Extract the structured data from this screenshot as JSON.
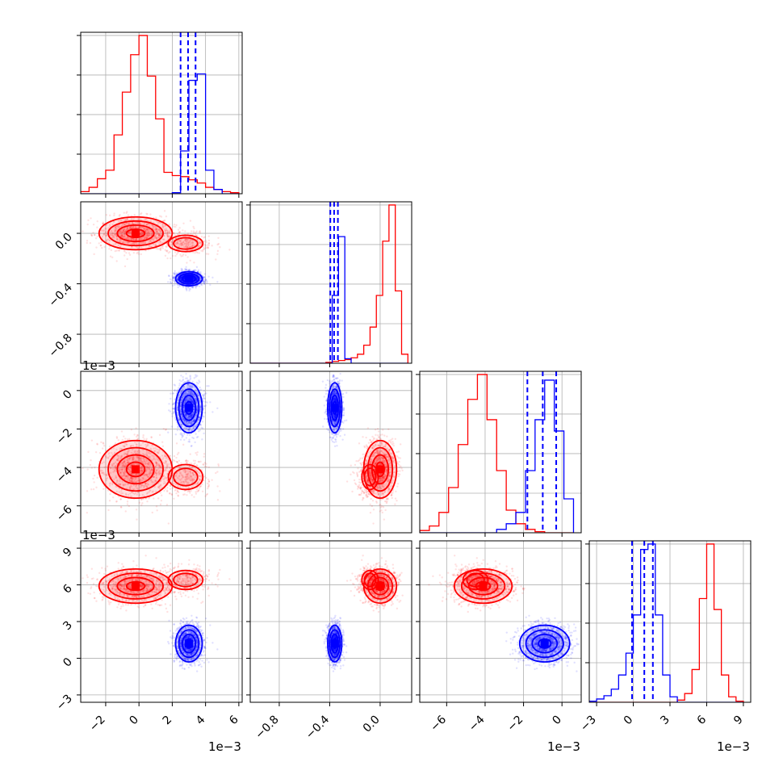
{
  "chart_data": {
    "type": "corner",
    "grid": true,
    "colors": {
      "red": "#ff0000",
      "blue": "#0000ff"
    },
    "series": [
      {
        "color": "#ff0000",
        "index": 0
      },
      {
        "color": "#0000ff",
        "index": 1
      }
    ],
    "parameters": [
      {
        "id": "p0",
        "range": [
          -0.0035,
          0.0062
        ],
        "ticks": [
          -0.002,
          0,
          0.002,
          0.004,
          0.006
        ],
        "tick_labels": [
          "−2",
          "0",
          "2",
          "4",
          "6"
        ],
        "offset_text": "1e−3"
      },
      {
        "id": "p1",
        "range": [
          -1.03,
          0.25
        ],
        "ticks": [
          -0.8,
          -0.4,
          0.0
        ],
        "tick_labels": [
          "−0.8",
          "−0.4",
          "0.0"
        ],
        "offset_text": ""
      },
      {
        "id": "p2",
        "range": [
          -0.0074,
          0.001
        ],
        "ticks": [
          -0.006,
          -0.004,
          -0.002,
          0
        ],
        "tick_labels": [
          "−6",
          "−4",
          "−2",
          "0"
        ],
        "offset_text": "1e−3"
      },
      {
        "id": "p3",
        "range": [
          -0.0036,
          0.0096
        ],
        "ticks": [
          -0.003,
          0,
          0.003,
          0.006,
          0.009
        ],
        "tick_labels": [
          "−3",
          "0",
          "3",
          "6",
          "9"
        ],
        "offset_text": "1e−3"
      }
    ],
    "quantile_lines": [
      [
        0.0025,
        0.00295,
        0.0034
      ],
      [
        -0.395,
        -0.365,
        -0.335
      ],
      [
        -0.0018,
        -0.001,
        -0.0003
      ],
      [
        -0.0001,
        0.0009,
        0.0016
      ]
    ],
    "blobs": [
      [
        {
          "mean": [
            -0.0002,
            0.0001,
            -0.0041,
            0.0059
          ],
          "sd": [
            0.0011,
            0.065,
            0.00075,
            0.0007
          ],
          "weight": 1.0
        },
        {
          "mean": [
            0.0028,
            -0.08,
            -0.0045,
            0.0064
          ],
          "sd": [
            0.0008,
            0.05,
            0.0005,
            0.0006
          ],
          "weight": 0.3
        }
      ],
      [
        {
          "mean": [
            0.003,
            -0.36,
            -0.0009,
            0.0012
          ],
          "sd": [
            0.0004,
            0.028,
            0.00065,
            0.00075
          ],
          "weight": 1.0
        }
      ]
    ],
    "samples_per_series": 1400,
    "marginal_histograms": [
      {
        "parameter": "p0",
        "bin_edges": [
          -0.0035,
          -0.003,
          -0.0025,
          -0.002,
          -0.0015,
          -0.001,
          -0.0005,
          0,
          0.0005,
          0.001,
          0.0015,
          0.002,
          0.0025,
          0.003,
          0.0035,
          0.004,
          0.0045,
          0.005,
          0.0055,
          0.006
        ],
        "series": [
          {
            "color": "#ff0000",
            "counts": [
              2,
              6,
              14,
              22,
              55,
              95,
              130,
              148,
              110,
              70,
              20,
              17,
              16,
              13,
              10,
              6,
              4,
              2,
              1
            ]
          },
          {
            "color": "#0000ff",
            "counts": [
              0,
              0,
              0,
              0,
              0,
              0,
              0,
              0,
              0,
              0,
              0,
              1,
              40,
              106,
              112,
              22,
              4,
              0,
              0
            ]
          }
        ]
      },
      {
        "parameter": "p1",
        "bin_edges": [
          -1.03,
          -0.98,
          -0.93,
          -0.88,
          -0.83,
          -0.78,
          -0.73,
          -0.68,
          -0.63,
          -0.58,
          -0.53,
          -0.48,
          -0.43,
          -0.38,
          -0.33,
          -0.28,
          -0.23,
          -0.18,
          -0.13,
          -0.08,
          -0.03,
          0.02,
          0.07,
          0.12,
          0.17,
          0.22
        ],
        "series": [
          {
            "color": "#ff0000",
            "counts": [
              0,
              0,
              0,
              0,
              0,
              0,
              0,
              0,
              0,
              0,
              0,
              0,
              1,
              2,
              3,
              4,
              6,
              10,
              20,
              40,
              75,
              135,
              175,
              80,
              10
            ]
          },
          {
            "color": "#0000ff",
            "counts": [
              0,
              0,
              0,
              0,
              0,
              0,
              0,
              0,
              0,
              0,
              0,
              0,
              0,
              75,
              140,
              5,
              0,
              0,
              0,
              0,
              0,
              0,
              0,
              0,
              0
            ]
          }
        ]
      },
      {
        "parameter": "p2",
        "bin_edges": [
          -0.0074,
          -0.0069,
          -0.0064,
          -0.0059,
          -0.0054,
          -0.0049,
          -0.0044,
          -0.0039,
          -0.0034,
          -0.0029,
          -0.0024,
          -0.0019,
          -0.0014,
          -0.0009,
          -0.0004,
          0.0001,
          0.0006
        ],
        "series": [
          {
            "color": "#ff0000",
            "counts": [
              2,
              6,
              18,
              40,
              78,
              118,
              140,
              100,
              55,
              20,
              8,
              3,
              1,
              0,
              0,
              0
            ]
          },
          {
            "color": "#0000ff",
            "counts": [
              0,
              0,
              0,
              0,
              0,
              0,
              0,
              0,
              3,
              8,
              18,
              55,
              100,
              135,
              90,
              30
            ]
          }
        ]
      },
      {
        "parameter": "p3",
        "bin_edges": [
          -0.0036,
          -0.003,
          -0.0024,
          -0.0018,
          -0.0012,
          -0.0006,
          0,
          0.0006,
          0.0012,
          0.0018,
          0.0024,
          0.003,
          0.0036,
          0.0042,
          0.0048,
          0.0054,
          0.006,
          0.0066,
          0.0072,
          0.0078,
          0.0084,
          0.009
        ],
        "series": [
          {
            "color": "#ff0000",
            "counts": [
              0,
              0,
              0,
              0,
              0,
              0,
              0,
              0,
              0,
              0,
              0,
              0,
              2,
              8,
              30,
              95,
              145,
              85,
              25,
              5,
              1
            ]
          },
          {
            "color": "#0000ff",
            "counts": [
              1,
              3,
              6,
              12,
              25,
              45,
              80,
              140,
              145,
              80,
              25,
              5,
              0,
              0,
              0,
              0,
              0,
              0,
              0,
              0,
              0
            ]
          }
        ]
      }
    ]
  }
}
